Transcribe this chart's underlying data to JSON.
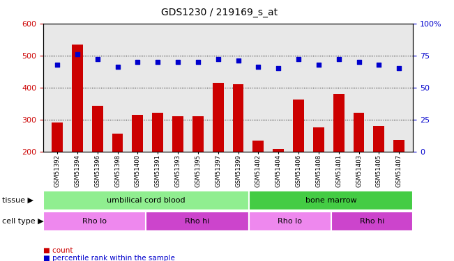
{
  "title": "GDS1230 / 219169_s_at",
  "samples": [
    "GSM51392",
    "GSM51394",
    "GSM51396",
    "GSM51398",
    "GSM51400",
    "GSM51391",
    "GSM51393",
    "GSM51395",
    "GSM51397",
    "GSM51399",
    "GSM51402",
    "GSM51404",
    "GSM51406",
    "GSM51408",
    "GSM51401",
    "GSM51403",
    "GSM51405",
    "GSM51407"
  ],
  "bar_values": [
    290,
    535,
    342,
    255,
    315,
    320,
    310,
    310,
    415,
    410,
    233,
    207,
    362,
    275,
    380,
    320,
    280,
    235
  ],
  "percentile_values": [
    68,
    76,
    72,
    66,
    70,
    70,
    70,
    70,
    72,
    71,
    66,
    65,
    72,
    68,
    72,
    70,
    68,
    65
  ],
  "bar_color": "#cc0000",
  "percentile_color": "#0000cc",
  "ylim_left": [
    200,
    600
  ],
  "ylim_right": [
    0,
    100
  ],
  "yticks_left": [
    200,
    300,
    400,
    500,
    600
  ],
  "yticks_right": [
    0,
    25,
    50,
    75,
    100
  ],
  "yticklabels_right": [
    "0",
    "25",
    "50",
    "75",
    "100%"
  ],
  "grid_lines": [
    300,
    400,
    500
  ],
  "tissue_labels": [
    {
      "text": "umbilical cord blood",
      "start": 0,
      "end": 9,
      "color": "#90ee90"
    },
    {
      "text": "bone marrow",
      "start": 10,
      "end": 17,
      "color": "#44cc44"
    }
  ],
  "cell_type_labels": [
    {
      "text": "Rho lo",
      "start": 0,
      "end": 4,
      "color": "#ee88ee"
    },
    {
      "text": "Rho hi",
      "start": 5,
      "end": 9,
      "color": "#cc44cc"
    },
    {
      "text": "Rho lo",
      "start": 10,
      "end": 13,
      "color": "#ee88ee"
    },
    {
      "text": "Rho hi",
      "start": 14,
      "end": 17,
      "color": "#cc44cc"
    }
  ],
  "legend_items": [
    {
      "label": "count",
      "color": "#cc0000"
    },
    {
      "label": "percentile rank within the sample",
      "color": "#0000cc"
    }
  ],
  "tissue_row_label": "tissue",
  "cell_type_row_label": "cell type",
  "plot_bg_color": "#e8e8e8"
}
